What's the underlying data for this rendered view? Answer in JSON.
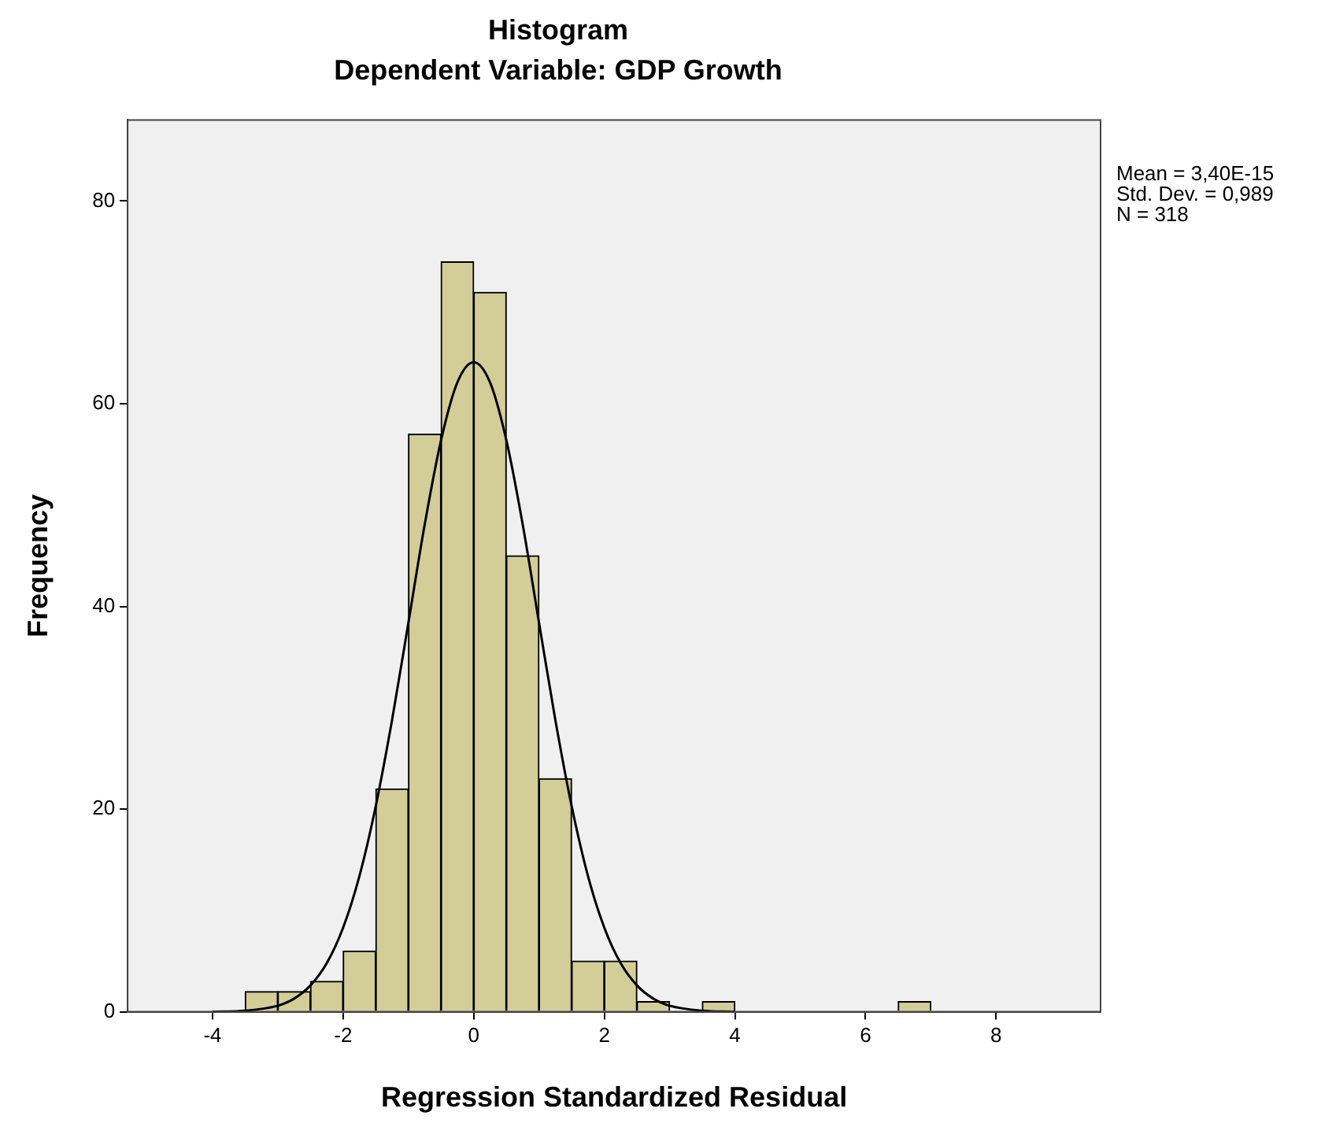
{
  "chart_data": {
    "type": "histogram",
    "title": "Histogram",
    "subtitle": "Dependent Variable: GDP Growth",
    "xlabel": "Regression Standardized Residual",
    "ylabel": "Frequency",
    "bins": [
      -3.5,
      -3,
      -2.5,
      -2,
      -1.5,
      -1,
      -0.5,
      0,
      0.5,
      1,
      1.5,
      2,
      2.5,
      3,
      3.5,
      4,
      4.5,
      5,
      5.5,
      6,
      6.5,
      7
    ],
    "series": [
      {
        "color": "#d3ce98",
        "values": [
          2,
          2,
          3,
          6,
          22,
          57,
          74,
          71,
          45,
          23,
          5,
          5,
          1,
          0,
          1,
          0,
          0,
          0,
          0,
          0,
          1
        ]
      },
      {
        "type": "line",
        "color": "#000000",
        "x": [
          -4,
          -3.5,
          -3,
          -2.75,
          -2.5,
          -2.25,
          -2,
          -1.75,
          -1.5,
          -1.25,
          -1,
          -0.75,
          -0.5,
          -0.25,
          0,
          0.25,
          0.5,
          0.75,
          1,
          1.25,
          1.5,
          1.75,
          2,
          2.25,
          2.5,
          2.75,
          3,
          3.5,
          4
        ],
        "values": [
          0,
          0.1,
          0.6,
          1.3,
          2.6,
          4.8,
          8.3,
          13.4,
          20.3,
          28.8,
          38.4,
          48.1,
          56.4,
          62.1,
          64.1,
          62.1,
          56.4,
          48.1,
          38.4,
          28.8,
          20.3,
          13.4,
          8.3,
          4.8,
          2.6,
          1.3,
          0.6,
          0.1,
          0
        ]
      }
    ],
    "marker": "none",
    "line_style": "solid",
    "xlim": [
      -5.3,
      9.6
    ],
    "xticks": [
      -4,
      -2,
      0,
      2,
      4,
      6,
      8
    ],
    "ylim": [
      0,
      88
    ],
    "yticks": [
      0,
      20,
      40,
      60,
      80
    ],
    "grid": false,
    "legend": false,
    "annotations": [
      "Mean = 3,40E-15",
      "Std. Dev. = 0,989",
      "N = 318"
    ]
  }
}
